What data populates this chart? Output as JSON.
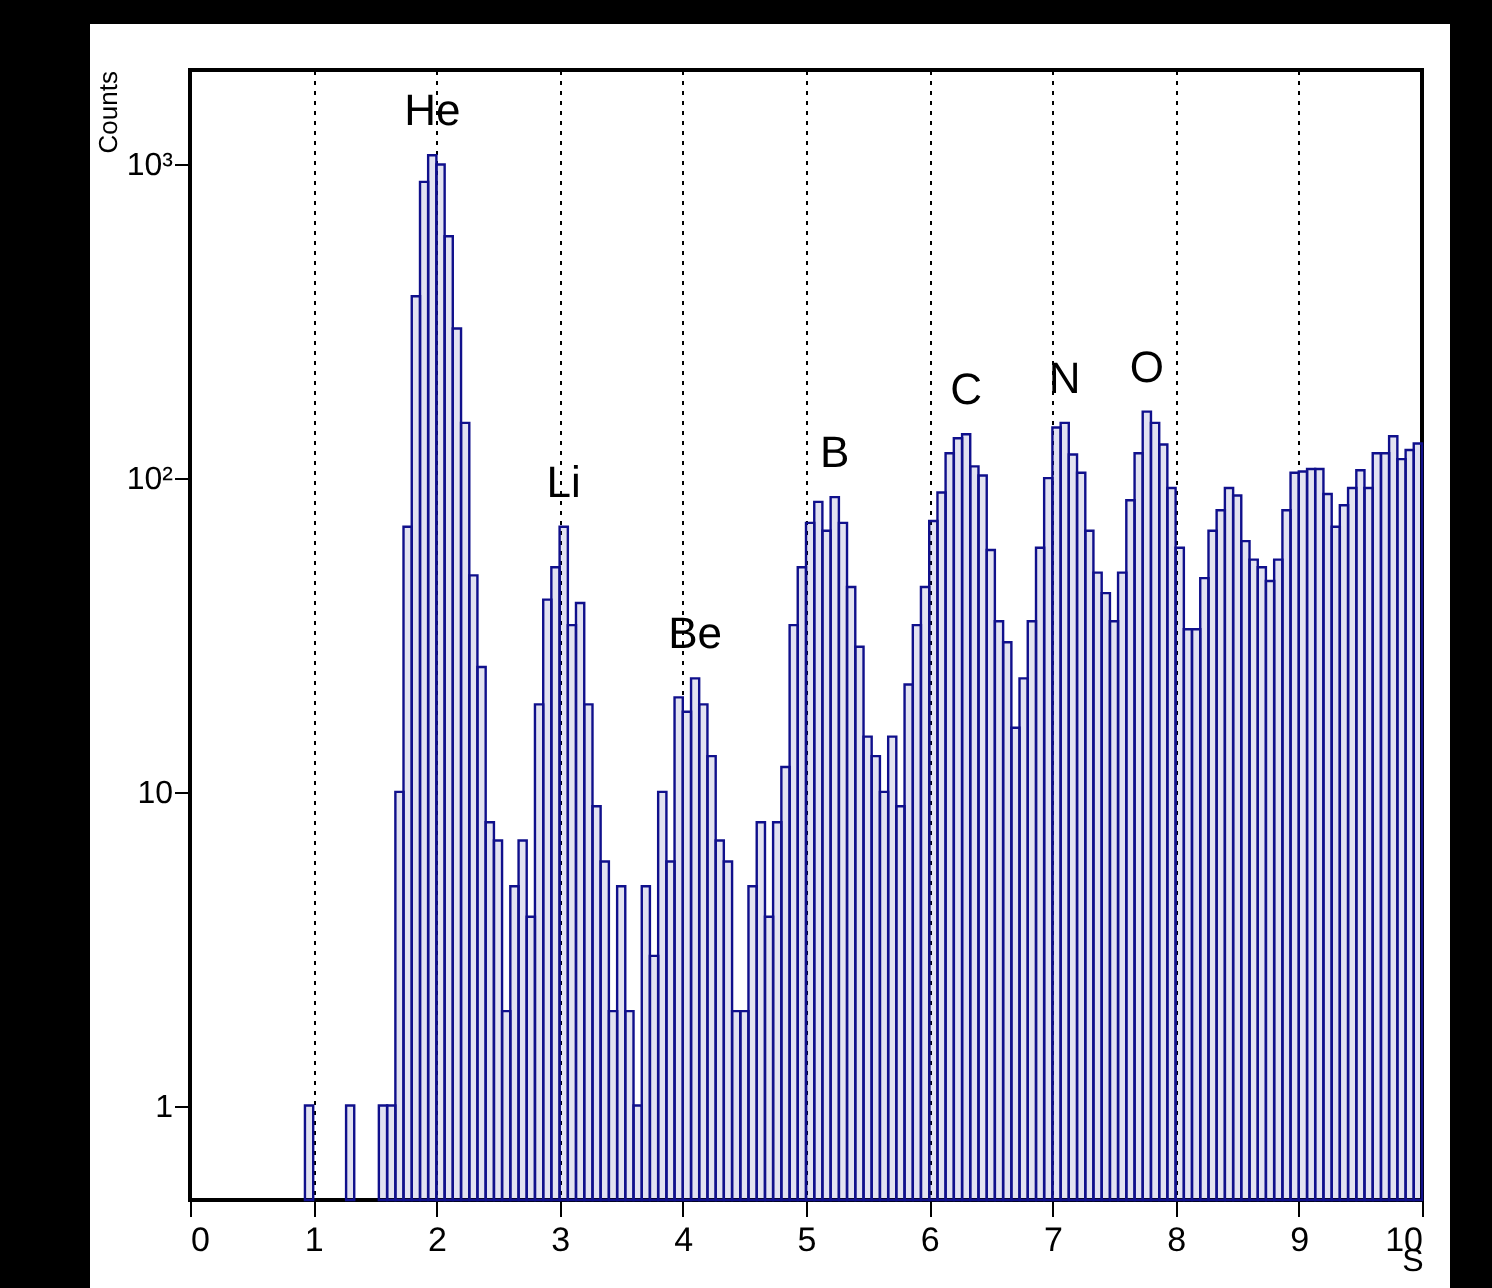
{
  "chart_data": {
    "type": "histogram",
    "xlabel": "S",
    "ylabel": "Counts",
    "bins": [
      0.933,
      1,
      1.067,
      1.133,
      1.2,
      1.267,
      1.333,
      1.4,
      1.467,
      1.533,
      1.6,
      1.667,
      1.733,
      1.8,
      1.867,
      1.933,
      2,
      2.067,
      2.133,
      2.2,
      2.267,
      2.333,
      2.4,
      2.467,
      2.533,
      2.6,
      2.667,
      2.733,
      2.8,
      2.867,
      2.933,
      3,
      3.067,
      3.133,
      3.2,
      3.267,
      3.333,
      3.4,
      3.467,
      3.533,
      3.6,
      3.667,
      3.733,
      3.8,
      3.867,
      3.933,
      4,
      4.067,
      4.133,
      4.2,
      4.267,
      4.333,
      4.4,
      4.467,
      4.533,
      4.6,
      4.667,
      4.733,
      4.8,
      4.867,
      4.933,
      5,
      5.067,
      5.133,
      5.2,
      5.267,
      5.333,
      5.4,
      5.467,
      5.533,
      5.6,
      5.667,
      5.733,
      5.8,
      5.867,
      5.933,
      6,
      6.067,
      6.133,
      6.2,
      6.267,
      6.333,
      6.4,
      6.467,
      6.533,
      6.6,
      6.667,
      6.733,
      6.8,
      6.867,
      6.933,
      7,
      7.067,
      7.133,
      7.2,
      7.267,
      7.333,
      7.4,
      7.467,
      7.533,
      7.6,
      7.667,
      7.733,
      7.8,
      7.867,
      7.933,
      8,
      8.067,
      8.133,
      8.2,
      8.267,
      8.333,
      8.4,
      8.467,
      8.533,
      8.6,
      8.667,
      8.733,
      8.8,
      8.867,
      8.933,
      9,
      9.067,
      9.133,
      9.2,
      9.267,
      9.333,
      9.4,
      9.467,
      9.533,
      9.6,
      9.667,
      9.733,
      9.8,
      9.867,
      9.933,
      10
    ],
    "values": [
      1,
      null,
      null,
      null,
      null,
      1,
      null,
      null,
      null,
      1,
      1,
      10,
      70,
      380,
      880,
      1070,
      1000,
      590,
      300,
      150,
      49,
      25,
      8,
      7,
      2,
      5,
      7,
      4,
      19,
      41,
      52,
      70,
      34,
      40,
      19,
      9,
      6,
      2,
      5,
      2,
      1,
      5,
      3,
      10,
      6,
      20,
      18,
      23,
      19,
      13,
      7,
      6,
      2,
      2,
      5,
      8,
      4,
      8,
      12,
      34,
      52,
      72,
      84,
      68,
      87,
      72,
      45,
      29,
      15,
      13,
      10,
      15,
      9,
      22,
      34,
      45,
      73,
      90,
      120,
      134,
      138,
      109,
      102,
      59,
      35,
      30,
      16,
      23,
      35,
      60,
      100,
      145,
      150,
      119,
      104,
      68,
      50,
      43,
      35,
      50,
      85,
      120,
      163,
      150,
      128,
      93,
      60,
      33,
      33,
      48,
      68,
      79,
      93,
      88,
      63,
      55,
      52,
      47,
      55,
      79,
      104,
      105,
      107,
      107,
      89,
      70,
      82,
      93,
      106,
      93,
      120,
      120,
      136,
      115,
      123,
      129
    ],
    "color": "#10108c",
    "log": "y",
    "xlim": [
      0,
      10
    ],
    "xticks": [
      0,
      1,
      2,
      3,
      4,
      5,
      6,
      7,
      8,
      9,
      10
    ],
    "ylim": [
      0.5,
      2000
    ],
    "yticks": [
      1,
      10,
      {
        "value": 100,
        "label": "10²"
      },
      {
        "value": 1000,
        "label": "10³"
      }
    ],
    "grid": "x",
    "annotations": [
      {
        "text": "He",
        "x": 1.967,
        "y": 1070
      },
      {
        "text": "Li",
        "x": 3.033,
        "y": 70
      },
      {
        "text": "Be",
        "x": 4.1,
        "y": 23
      },
      {
        "text": "B",
        "x": 5.233,
        "y": 87
      },
      {
        "text": "C",
        "x": 6.3,
        "y": 138
      },
      {
        "text": "N",
        "x": 7.1,
        "y": 150
      },
      {
        "text": "O",
        "x": 7.767,
        "y": 163
      }
    ]
  }
}
